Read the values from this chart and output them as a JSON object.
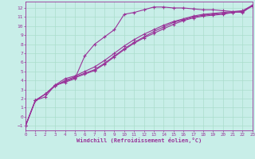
{
  "xlabel": "Windchill (Refroidissement éolien,°C)",
  "bg_color": "#c8eee8",
  "line_color": "#993399",
  "grid_color": "#aaddcc",
  "xlim": [
    0,
    23
  ],
  "ylim": [
    -1.5,
    12.7
  ],
  "xticks": [
    0,
    1,
    2,
    3,
    4,
    5,
    6,
    7,
    8,
    9,
    10,
    11,
    12,
    13,
    14,
    15,
    16,
    17,
    18,
    19,
    20,
    21,
    22,
    23
  ],
  "yticks": [
    -1,
    0,
    1,
    2,
    3,
    4,
    5,
    6,
    7,
    8,
    9,
    10,
    11,
    12
  ],
  "x": [
    0,
    1,
    2,
    3,
    4,
    5,
    6,
    7,
    8,
    9,
    10,
    11,
    12,
    13,
    14,
    15,
    16,
    17,
    18,
    19,
    20,
    21,
    22,
    23
  ],
  "series": [
    [
      -1.0,
      1.8,
      2.2,
      3.5,
      3.8,
      4.2,
      6.7,
      8.0,
      8.8,
      9.6,
      11.3,
      11.5,
      11.8,
      12.1,
      12.1,
      12.0,
      12.0,
      11.9,
      11.8,
      11.8,
      11.7,
      11.6,
      11.5,
      12.3
    ],
    [
      -1.0,
      1.8,
      2.5,
      3.5,
      4.2,
      4.5,
      5.0,
      5.5,
      6.2,
      7.0,
      7.8,
      8.5,
      9.1,
      9.6,
      10.1,
      10.5,
      10.8,
      11.1,
      11.3,
      11.4,
      11.5,
      11.6,
      11.7,
      12.3
    ],
    [
      -1.0,
      1.8,
      2.5,
      3.4,
      4.0,
      4.4,
      4.8,
      5.2,
      5.9,
      6.7,
      7.5,
      8.2,
      8.8,
      9.4,
      9.9,
      10.4,
      10.7,
      11.0,
      11.2,
      11.3,
      11.4,
      11.5,
      11.6,
      12.3
    ],
    [
      -1.0,
      1.8,
      2.5,
      3.4,
      3.9,
      4.3,
      4.7,
      5.1,
      5.8,
      6.6,
      7.4,
      8.1,
      8.7,
      9.2,
      9.7,
      10.2,
      10.6,
      10.9,
      11.1,
      11.2,
      11.3,
      11.5,
      11.6,
      12.2
    ]
  ]
}
